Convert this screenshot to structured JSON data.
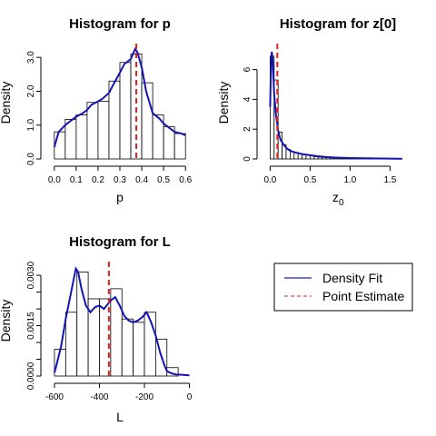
{
  "chart_data": [
    {
      "type": "histogram",
      "title": "Histogram for  p",
      "xlabel": "p",
      "ylabel": "Density",
      "xlim": [
        -0.02,
        0.62
      ],
      "ylim": [
        0,
        3.3
      ],
      "xticks": [
        0.0,
        0.1,
        0.2,
        0.3,
        0.4,
        0.5,
        0.6
      ],
      "xtick_labels": [
        "0.0",
        "0.1",
        "0.2",
        "0.3",
        "0.4",
        "0.5",
        "0.6"
      ],
      "yticks": [
        0.0,
        1.0,
        2.0,
        3.0
      ],
      "ytick_labels": [
        "0.0",
        "1.0",
        "2.0",
        "3.0"
      ],
      "bins": [
        0.0,
        0.05,
        0.1,
        0.15,
        0.2,
        0.25,
        0.3,
        0.35,
        0.4,
        0.45,
        0.5,
        0.55,
        0.6
      ],
      "values": [
        0.8,
        1.17,
        1.3,
        1.67,
        1.7,
        2.3,
        2.85,
        3.1,
        2.25,
        1.3,
        0.95,
        0.75
      ],
      "density": {
        "x": [
          0.0,
          0.02,
          0.05,
          0.08,
          0.1,
          0.13,
          0.15,
          0.17,
          0.2,
          0.22,
          0.25,
          0.27,
          0.3,
          0.32,
          0.35,
          0.37,
          0.38,
          0.4,
          0.42,
          0.45,
          0.48,
          0.5,
          0.53,
          0.55,
          0.58,
          0.6
        ],
        "y": [
          0.35,
          0.8,
          1.0,
          1.15,
          1.25,
          1.35,
          1.45,
          1.6,
          1.7,
          1.78,
          1.95,
          2.2,
          2.55,
          2.8,
          2.95,
          3.25,
          3.15,
          2.7,
          2.0,
          1.35,
          1.2,
          1.05,
          0.9,
          0.8,
          0.75,
          0.7
        ]
      },
      "point_estimate": 0.375
    },
    {
      "type": "histogram",
      "title": "Histogram for  z[0]",
      "xlabel": "z",
      "xlabel_sub": "0",
      "ylabel": "Density",
      "xlim": [
        -0.05,
        1.7
      ],
      "ylim": [
        0,
        7.5
      ],
      "xticks": [
        0.0,
        0.5,
        1.0,
        1.5
      ],
      "xtick_labels": [
        "0.0",
        "0.5",
        "1.0",
        "1.5"
      ],
      "yticks": [
        0,
        2,
        4,
        6
      ],
      "ytick_labels": [
        "0",
        "2",
        "4",
        "6"
      ],
      "bins": [
        0.0,
        0.05,
        0.1,
        0.15,
        0.2,
        0.25,
        0.3,
        0.35,
        0.4,
        0.45,
        0.5,
        0.55,
        0.6,
        0.65,
        0.7,
        0.75,
        0.8,
        0.85,
        0.9,
        0.95,
        1.0,
        1.05,
        1.1,
        1.15,
        1.2,
        1.25,
        1.3,
        1.35,
        1.4,
        1.45,
        1.5,
        1.55,
        1.6,
        1.65
      ],
      "values": [
        6.9,
        5.3,
        1.8,
        0.95,
        0.65,
        0.5,
        0.42,
        0.35,
        0.3,
        0.25,
        0.2,
        0.15,
        0.12,
        0.1,
        0.08,
        0.07,
        0.06,
        0.05,
        0.05,
        0.04,
        0.04,
        0.03,
        0.03,
        0.03,
        0.02,
        0.02,
        0.02,
        0.02,
        0.01,
        0.01,
        0.01,
        0.01,
        0.01
      ],
      "density": {
        "x": [
          0.0,
          0.01,
          0.02,
          0.03,
          0.04,
          0.05,
          0.07,
          0.1,
          0.13,
          0.17,
          0.2,
          0.25,
          0.3,
          0.4,
          0.5,
          0.6,
          0.7,
          0.8,
          0.9,
          1.0,
          1.2,
          1.4,
          1.6,
          1.65
        ],
        "y": [
          3.5,
          6.2,
          7.2,
          6.8,
          5.6,
          4.4,
          3.1,
          1.9,
          1.3,
          0.95,
          0.75,
          0.55,
          0.45,
          0.33,
          0.25,
          0.18,
          0.13,
          0.1,
          0.08,
          0.06,
          0.04,
          0.03,
          0.02,
          0.02
        ]
      },
      "point_estimate": 0.09
    },
    {
      "type": "histogram",
      "title": "Histogram for  L",
      "xlabel": "L",
      "ylabel": "Density",
      "xlim": [
        -620,
        10
      ],
      "ylim": [
        0,
        0.0033
      ],
      "xticks": [
        -600,
        -400,
        -200,
        0
      ],
      "xtick_labels": [
        "-600",
        "-400",
        "-200",
        "0"
      ],
      "yticks": [
        0.0,
        0.0015,
        0.003
      ],
      "ytick_labels": [
        "0.0000",
        "0.0015",
        "0.0030"
      ],
      "yticks_minor": [
        0.0005,
        0.001,
        0.002,
        0.0025
      ],
      "bins": [
        -600,
        -550,
        -500,
        -450,
        -400,
        -350,
        -300,
        -250,
        -200,
        -150,
        -100,
        -50
      ],
      "values": [
        0.0008,
        0.0019,
        0.0031,
        0.0023,
        0.0023,
        0.0026,
        0.0017,
        0.0016,
        0.0019,
        0.0011,
        0.00025
      ],
      "density": {
        "x": [
          -600,
          -590,
          -570,
          -550,
          -520,
          -505,
          -495,
          -480,
          -460,
          -440,
          -420,
          -400,
          -380,
          -350,
          -330,
          -310,
          -290,
          -270,
          -250,
          -230,
          -210,
          -190,
          -170,
          -160,
          -150,
          -140,
          -130,
          -120,
          -110,
          -100,
          -80,
          -60,
          -40,
          -20,
          0
        ],
        "y": [
          0.0001,
          0.00035,
          0.0009,
          0.0017,
          0.0027,
          0.0032,
          0.0031,
          0.0026,
          0.0021,
          0.0019,
          0.00205,
          0.0021,
          0.002,
          0.00225,
          0.00235,
          0.0021,
          0.0018,
          0.00165,
          0.0016,
          0.00165,
          0.00175,
          0.0019,
          0.0016,
          0.0014,
          0.0012,
          0.00095,
          0.0007,
          0.0005,
          0.0003,
          0.00015,
          8e-05,
          5e-05,
          4e-05,
          3e-05,
          2e-05
        ]
      },
      "point_estimate": -358
    }
  ],
  "legend": {
    "items": [
      {
        "label": "Density Fit",
        "color": "#1f1fbf",
        "style": "solid"
      },
      {
        "label": "Point Estimate",
        "color": "#e04848",
        "style": "dashed"
      }
    ]
  },
  "colors": {
    "density": "#1414b4",
    "estimate": "#e02020",
    "bar": "#000000"
  }
}
